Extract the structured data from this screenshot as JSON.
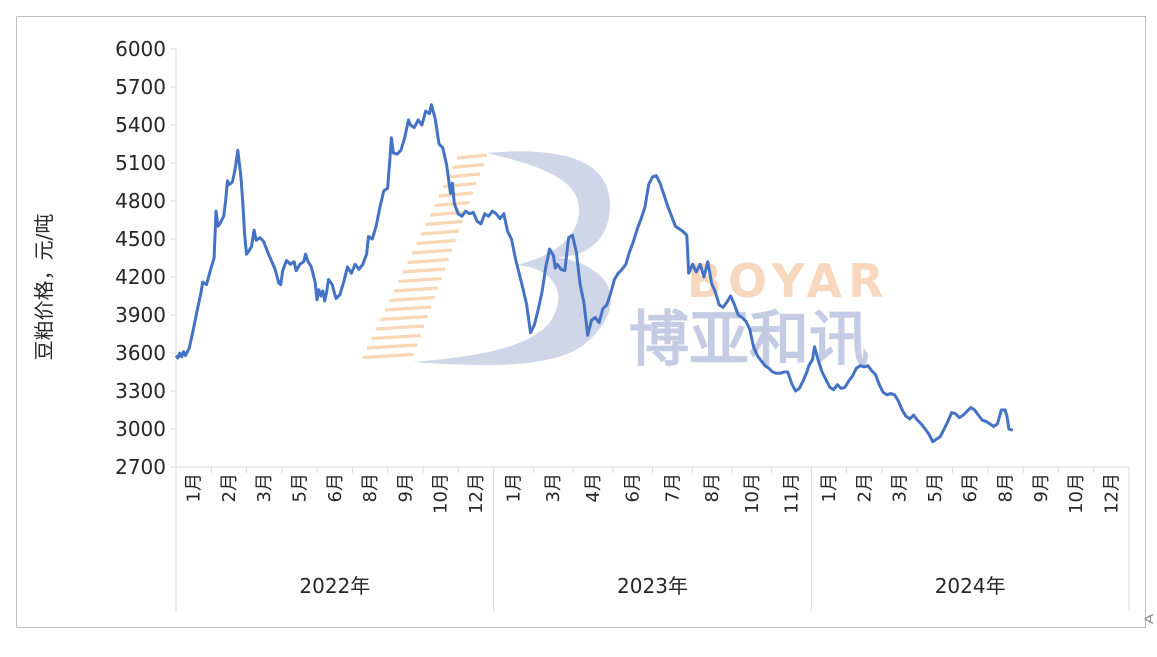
{
  "watermark": {
    "letters": "BOYAR",
    "chinese": "博亚和讯",
    "colors": {
      "letters": "#f6d2b4",
      "chinese": "#b9c4de",
      "swoosh": "#c7cfe4",
      "stripes": "#f8cfa8"
    }
  },
  "corner_mark": "∢",
  "chart_data": {
    "type": "line",
    "title": "",
    "xlabel": "",
    "ylabel": "豆粕价格，元/吨",
    "ylim": [
      2700,
      6000
    ],
    "yticks": [
      2700,
      3000,
      3300,
      3600,
      3900,
      4200,
      4500,
      4800,
      5100,
      5400,
      5700,
      6000
    ],
    "line_color": "#4472c4",
    "legend": "none",
    "grid": false,
    "years": [
      {
        "label": "2022年",
        "months": [
          "1月",
          "2月",
          "3月",
          "5月",
          "6月",
          "8月",
          "9月",
          "10月",
          "12月"
        ]
      },
      {
        "label": "2023年",
        "months": [
          "1月",
          "3月",
          "4月",
          "6月",
          "7月",
          "8月",
          "10月",
          "11月"
        ]
      },
      {
        "label": "2024年",
        "months": [
          "1月",
          "2月",
          "3月",
          "5月",
          "6月",
          "8月",
          "9月",
          "10月",
          "12月"
        ]
      }
    ],
    "series": [
      {
        "name": "",
        "x_range": [
          0,
          25
        ],
        "points": [
          [
            0.0,
            3580
          ],
          [
            0.05,
            3560
          ],
          [
            0.1,
            3600
          ],
          [
            0.15,
            3570
          ],
          [
            0.2,
            3610
          ],
          [
            0.25,
            3580
          ],
          [
            0.35,
            3640
          ],
          [
            0.45,
            3780
          ],
          [
            0.55,
            3930
          ],
          [
            0.65,
            4070
          ],
          [
            0.7,
            4160
          ],
          [
            0.8,
            4140
          ],
          [
            0.9,
            4250
          ],
          [
            1.0,
            4350
          ],
          [
            1.05,
            4720
          ],
          [
            1.1,
            4600
          ],
          [
            1.15,
            4620
          ],
          [
            1.25,
            4680
          ],
          [
            1.3,
            4800
          ],
          [
            1.35,
            4960
          ],
          [
            1.4,
            4930
          ],
          [
            1.48,
            4950
          ],
          [
            1.55,
            5050
          ],
          [
            1.62,
            5200
          ],
          [
            1.7,
            5000
          ],
          [
            1.75,
            4800
          ],
          [
            1.8,
            4540
          ],
          [
            1.85,
            4380
          ],
          [
            1.9,
            4400
          ],
          [
            1.98,
            4440
          ],
          [
            2.05,
            4570
          ],
          [
            2.1,
            4490
          ],
          [
            2.2,
            4510
          ],
          [
            2.3,
            4480
          ],
          [
            2.4,
            4400
          ],
          [
            2.5,
            4330
          ],
          [
            2.6,
            4260
          ],
          [
            2.7,
            4150
          ],
          [
            2.75,
            4140
          ],
          [
            2.8,
            4250
          ],
          [
            2.9,
            4330
          ],
          [
            3.0,
            4300
          ],
          [
            3.1,
            4320
          ],
          [
            3.15,
            4250
          ],
          [
            3.25,
            4300
          ],
          [
            3.35,
            4320
          ],
          [
            3.4,
            4380
          ],
          [
            3.45,
            4330
          ],
          [
            3.55,
            4280
          ],
          [
            3.65,
            4160
          ],
          [
            3.7,
            4020
          ],
          [
            3.75,
            4100
          ],
          [
            3.8,
            4050
          ],
          [
            3.85,
            4090
          ],
          [
            3.9,
            4010
          ],
          [
            3.95,
            4080
          ],
          [
            4.0,
            4180
          ],
          [
            4.1,
            4140
          ],
          [
            4.15,
            4080
          ],
          [
            4.2,
            4030
          ],
          [
            4.3,
            4060
          ],
          [
            4.4,
            4160
          ],
          [
            4.5,
            4280
          ],
          [
            4.6,
            4230
          ],
          [
            4.7,
            4300
          ],
          [
            4.8,
            4260
          ],
          [
            4.9,
            4300
          ],
          [
            5.0,
            4380
          ],
          [
            5.05,
            4520
          ],
          [
            5.15,
            4500
          ],
          [
            5.25,
            4600
          ],
          [
            5.35,
            4750
          ],
          [
            5.45,
            4880
          ],
          [
            5.55,
            4900
          ],
          [
            5.6,
            5090
          ],
          [
            5.65,
            5300
          ],
          [
            5.7,
            5180
          ],
          [
            5.8,
            5170
          ],
          [
            5.9,
            5200
          ],
          [
            6.0,
            5300
          ],
          [
            6.1,
            5440
          ],
          [
            6.15,
            5400
          ],
          [
            6.25,
            5380
          ],
          [
            6.35,
            5440
          ],
          [
            6.45,
            5400
          ],
          [
            6.55,
            5510
          ],
          [
            6.65,
            5490
          ],
          [
            6.7,
            5560
          ],
          [
            6.8,
            5450
          ],
          [
            6.9,
            5250
          ],
          [
            7.0,
            5220
          ],
          [
            7.1,
            5080
          ],
          [
            7.2,
            4860
          ],
          [
            7.25,
            4940
          ],
          [
            7.3,
            4780
          ],
          [
            7.4,
            4700
          ],
          [
            7.5,
            4680
          ],
          [
            7.6,
            4720
          ],
          [
            7.7,
            4700
          ],
          [
            7.8,
            4710
          ],
          [
            7.9,
            4640
          ],
          [
            8.0,
            4620
          ],
          [
            8.1,
            4700
          ],
          [
            8.2,
            4680
          ],
          [
            8.3,
            4720
          ],
          [
            8.4,
            4700
          ],
          [
            8.5,
            4660
          ],
          [
            8.6,
            4700
          ],
          [
            8.7,
            4560
          ],
          [
            8.8,
            4500
          ],
          [
            8.9,
            4350
          ],
          [
            9.0,
            4230
          ],
          [
            9.1,
            4110
          ],
          [
            9.2,
            3980
          ],
          [
            9.3,
            3760
          ],
          [
            9.4,
            3820
          ],
          [
            9.5,
            3940
          ],
          [
            9.6,
            4080
          ],
          [
            9.7,
            4280
          ],
          [
            9.8,
            4420
          ],
          [
            9.9,
            4370
          ],
          [
            9.95,
            4270
          ],
          [
            10.0,
            4300
          ],
          [
            10.1,
            4260
          ],
          [
            10.2,
            4250
          ],
          [
            10.3,
            4510
          ],
          [
            10.4,
            4530
          ],
          [
            10.5,
            4400
          ],
          [
            10.6,
            4140
          ],
          [
            10.7,
            4000
          ],
          [
            10.8,
            3740
          ],
          [
            10.9,
            3860
          ],
          [
            11.0,
            3880
          ],
          [
            11.1,
            3840
          ],
          [
            11.2,
            3950
          ],
          [
            11.3,
            3980
          ],
          [
            11.4,
            4070
          ],
          [
            11.5,
            4180
          ],
          [
            11.6,
            4230
          ],
          [
            11.7,
            4260
          ],
          [
            11.8,
            4300
          ],
          [
            11.9,
            4400
          ],
          [
            12.0,
            4480
          ],
          [
            12.1,
            4580
          ],
          [
            12.2,
            4660
          ],
          [
            12.3,
            4750
          ],
          [
            12.4,
            4930
          ],
          [
            12.5,
            4990
          ],
          [
            12.6,
            5000
          ],
          [
            12.7,
            4940
          ],
          [
            12.8,
            4850
          ],
          [
            12.9,
            4760
          ],
          [
            13.0,
            4680
          ],
          [
            13.1,
            4600
          ],
          [
            13.2,
            4580
          ],
          [
            13.3,
            4560
          ],
          [
            13.4,
            4530
          ],
          [
            13.45,
            4230
          ],
          [
            13.55,
            4300
          ],
          [
            13.65,
            4240
          ],
          [
            13.75,
            4300
          ],
          [
            13.85,
            4200
          ],
          [
            13.95,
            4320
          ],
          [
            14.05,
            4150
          ],
          [
            14.15,
            4080
          ],
          [
            14.25,
            3980
          ],
          [
            14.35,
            3960
          ],
          [
            14.45,
            4000
          ],
          [
            14.55,
            4050
          ],
          [
            14.65,
            3980
          ],
          [
            14.75,
            3900
          ],
          [
            14.85,
            3880
          ],
          [
            14.95,
            3850
          ],
          [
            15.05,
            3790
          ],
          [
            15.15,
            3650
          ],
          [
            15.25,
            3580
          ],
          [
            15.35,
            3540
          ],
          [
            15.45,
            3500
          ],
          [
            15.55,
            3480
          ],
          [
            15.65,
            3450
          ],
          [
            15.75,
            3440
          ],
          [
            15.85,
            3440
          ],
          [
            15.95,
            3450
          ],
          [
            16.05,
            3450
          ],
          [
            16.15,
            3360
          ],
          [
            16.25,
            3300
          ],
          [
            16.35,
            3320
          ],
          [
            16.45,
            3380
          ],
          [
            16.55,
            3450
          ],
          [
            16.6,
            3500
          ],
          [
            16.7,
            3550
          ],
          [
            16.75,
            3650
          ],
          [
            16.85,
            3540
          ],
          [
            16.95,
            3450
          ],
          [
            17.05,
            3390
          ],
          [
            17.15,
            3330
          ],
          [
            17.25,
            3310
          ],
          [
            17.35,
            3350
          ],
          [
            17.45,
            3320
          ],
          [
            17.55,
            3330
          ],
          [
            17.65,
            3380
          ],
          [
            17.75,
            3420
          ],
          [
            17.85,
            3480
          ],
          [
            17.95,
            3500
          ],
          [
            18.05,
            3490
          ],
          [
            18.15,
            3500
          ],
          [
            18.25,
            3460
          ],
          [
            18.35,
            3430
          ],
          [
            18.45,
            3350
          ],
          [
            18.55,
            3290
          ],
          [
            18.65,
            3270
          ],
          [
            18.75,
            3280
          ],
          [
            18.85,
            3270
          ],
          [
            18.95,
            3220
          ],
          [
            19.05,
            3150
          ],
          [
            19.15,
            3100
          ],
          [
            19.25,
            3080
          ],
          [
            19.35,
            3110
          ],
          [
            19.45,
            3070
          ],
          [
            19.55,
            3040
          ],
          [
            19.65,
            3000
          ],
          [
            19.75,
            2960
          ],
          [
            19.85,
            2900
          ],
          [
            19.95,
            2920
          ],
          [
            20.05,
            2940
          ],
          [
            20.15,
            3000
          ],
          [
            20.25,
            3060
          ],
          [
            20.35,
            3130
          ],
          [
            20.45,
            3120
          ],
          [
            20.55,
            3090
          ],
          [
            20.65,
            3110
          ],
          [
            20.75,
            3140
          ],
          [
            20.85,
            3170
          ],
          [
            20.95,
            3150
          ],
          [
            21.05,
            3110
          ],
          [
            21.15,
            3070
          ],
          [
            21.25,
            3060
          ],
          [
            21.35,
            3040
          ],
          [
            21.45,
            3020
          ],
          [
            21.55,
            3040
          ],
          [
            21.65,
            3150
          ],
          [
            21.75,
            3150
          ],
          [
            21.8,
            3100
          ],
          [
            21.85,
            3000
          ],
          [
            21.95,
            2990
          ]
        ]
      }
    ]
  }
}
